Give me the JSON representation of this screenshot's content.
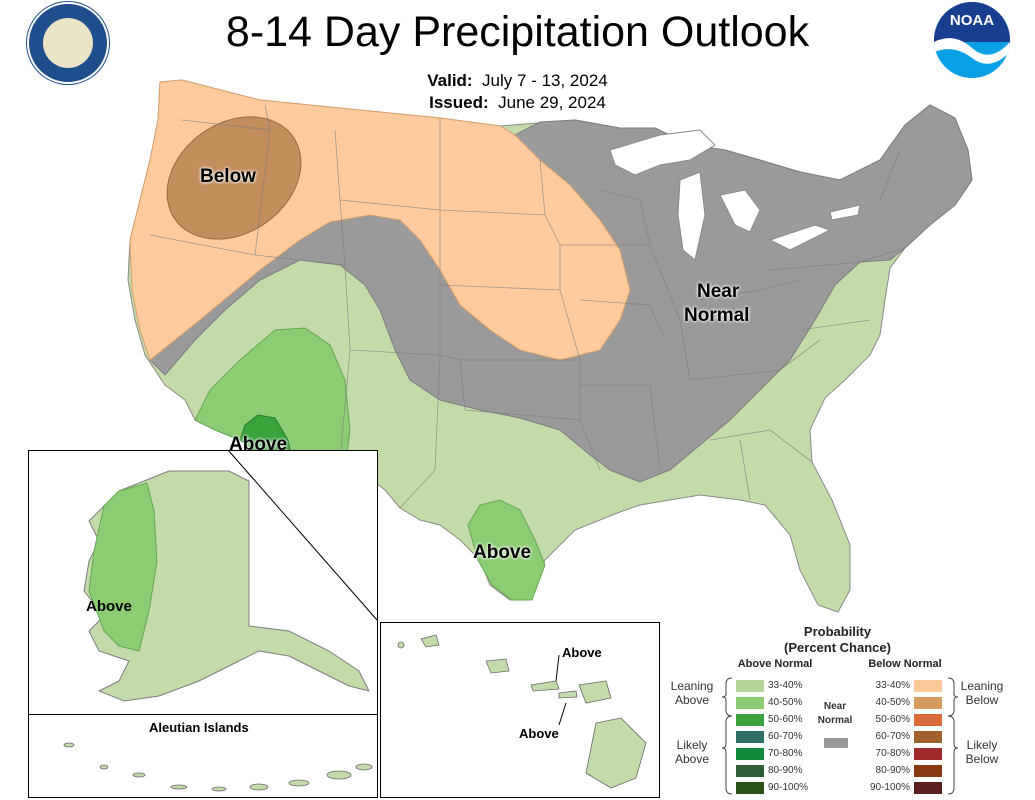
{
  "title": "8-14 Day Precipitation Outlook",
  "valid_label": "Valid:",
  "valid_value": "July 7 - 13, 2024",
  "issued_label": "Issued:",
  "issued_value": "June 29, 2024",
  "map_labels": {
    "below": "Below",
    "near_normal_1": "Near",
    "near_normal_2": "Normal",
    "above_az": "Above",
    "above_tx": "Above",
    "above_ak": "Above",
    "above_hi_1": "Above",
    "above_hi_2": "Above",
    "aleutian": "Aleutian Islands"
  },
  "legend": {
    "title_1": "Probability",
    "title_2": "(Percent Chance)",
    "above_head": "Above Normal",
    "below_head": "Below Normal",
    "near_1": "Near",
    "near_2": "Normal",
    "leaning_above_1": "Leaning",
    "leaning_above_2": "Above",
    "likely_above_1": "Likely",
    "likely_above_2": "Above",
    "leaning_below_1": "Leaning",
    "leaning_below_2": "Below",
    "likely_below_1": "Likely",
    "likely_below_2": "Below",
    "above_items": [
      {
        "label": "33-40%",
        "color": "#b5d69b"
      },
      {
        "label": "40-50%",
        "color": "#8ccc73"
      },
      {
        "label": "50-60%",
        "color": "#3aa23a"
      },
      {
        "label": "60-70%",
        "color": "#2e6f66"
      },
      {
        "label": "70-80%",
        "color": "#128a3c"
      },
      {
        "label": "80-90%",
        "color": "#2f5f34"
      },
      {
        "label": "90-100%",
        "color": "#2b5117"
      }
    ],
    "below_items": [
      {
        "label": "33-40%",
        "color": "#ffc99a"
      },
      {
        "label": "40-50%",
        "color": "#d49a5c"
      },
      {
        "label": "50-60%",
        "color": "#d9683a"
      },
      {
        "label": "60-70%",
        "color": "#a15f2e"
      },
      {
        "label": "70-80%",
        "color": "#9e2a2a"
      },
      {
        "label": "80-90%",
        "color": "#8a3a12"
      },
      {
        "label": "90-100%",
        "color": "#5a2020"
      }
    ],
    "near_color": "#999999"
  },
  "colors": {
    "near_normal": "#9a9a9a",
    "leaning_above": "#c2dba9",
    "above_40_50": "#8ccc73",
    "above_50_60": "#3aa23a",
    "leaning_below": "#ffcb9c",
    "below_40_50": "#c38d5c"
  }
}
